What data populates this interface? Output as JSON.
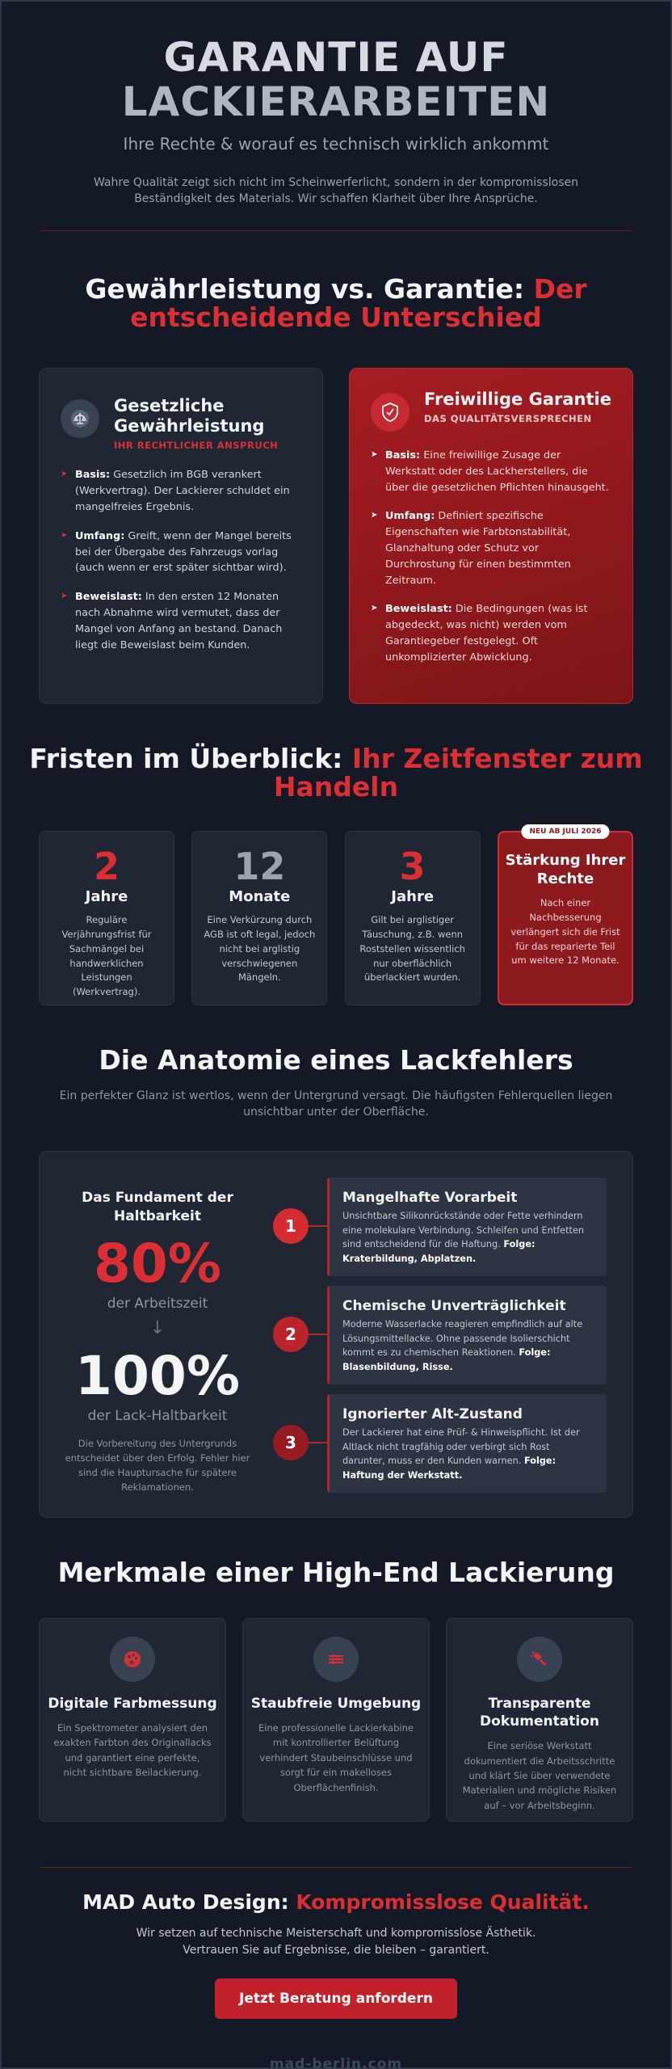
{
  "hero": {
    "title_line1": "GARANTIE AUF",
    "title_line2": "LACKIERARBEITEN",
    "subtitle": "Ihre Rechte & worauf es technisch wirklich ankommt",
    "intro": "Wahre Qualität zeigt sich nicht im Scheinwerferlicht, sondern in der kompromisslosen Beständigkeit des Materials. Wir schaffen Klarheit über Ihre Ansprüche."
  },
  "comparison": {
    "title_white": "Gewährleistung vs. Garantie: ",
    "title_red": "Der entscheidende Unterschied",
    "left": {
      "icon": "scale-icon",
      "title": "Gesetzliche Gewährleistung",
      "tag": "IHR RECHTLICHER ANSPRUCH",
      "items": [
        {
          "label": "Basis:",
          "text": " Gesetzlich im BGB verankert (Werkvertrag). Der Lackierer schuldet ein mangelfreies Ergebnis."
        },
        {
          "label": "Umfang:",
          "text": " Greift, wenn der Mangel bereits bei der Übergabe des Fahrzeugs vorlag (auch wenn er erst später sichtbar wird)."
        },
        {
          "label": "Beweislast:",
          "text": " In den ersten 12 Monaten nach Abnahme wird vermutet, dass der Mangel von Anfang an bestand. Danach liegt die Beweislast beim Kunden."
        }
      ]
    },
    "right": {
      "icon": "shield-icon",
      "title": "Freiwillige Garantie",
      "tag": "DAS QUALITÄTSVERSPRECHEN",
      "items": [
        {
          "label": "Basis:",
          "text": " Eine freiwillige Zusage der Werkstatt oder des Lackherstellers, die über die gesetzlichen Pflichten hinausgeht."
        },
        {
          "label": "Umfang:",
          "text": " Definiert spezifische Eigenschaften wie Farbtonstabilität, Glanzhaltung oder Schutz vor Durchrostung für einen bestimmten Zeitraum."
        },
        {
          "label": "Beweislast:",
          "text": " Die Bedingungen (was ist abgedeckt, was nicht) werden vom Garantiegeber festgelegt. Oft unkomplizierter Abwicklung."
        }
      ]
    }
  },
  "deadlines": {
    "title_white": "Fristen im Überblick: ",
    "title_red": "Ihr Zeitfenster zum Handeln",
    "items": [
      {
        "num": "2",
        "unit": "Jahre",
        "desc": "Reguläre Verjährungsfrist für Sachmängel bei handwerklichen Leistungen (Werkvertrag).",
        "color": "#dc2f34"
      },
      {
        "num": "12",
        "unit": "Monate",
        "desc": "Eine Verkürzung durch AGB ist oft legal, jedoch nicht bei arglistig verschwiegenen Mängeln.",
        "color": "#9ca3af"
      },
      {
        "num": "3",
        "unit": "Jahre",
        "desc": "Gilt bei arglistiger Täuschung, z.B. wenn Roststellen wissentlich nur oberflächlich überlackiert wurden.",
        "color": "#dc2f34"
      }
    ],
    "highlight": {
      "tag": "NEU AB JULI 2026",
      "title": "Stärkung Ihrer Rechte",
      "desc": "Nach einer Nachbesserung verlängert sich die Frist für das reparierte Teil um weitere 12 Monate."
    }
  },
  "anatomy": {
    "title": "Die Anatomie eines Lackfehlers",
    "subtitle": "Ein perfekter Glanz ist wertlos, wenn der Untergrund versagt. Die häufigsten Fehlerquellen liegen unsichtbar unter der Oberfläche.",
    "foundation_title": "Das Fundament der Haltbarkeit",
    "stat1_value": "80%",
    "stat1_caption": "der Arbeitszeit",
    "stat2_value": "100%",
    "stat2_caption": "der Lack-Haltbarkeit",
    "note": "Die Vorbereitung des Untergrunds entscheidet über den Erfolg. Fehler hier sind die Hauptursache für spätere Reklamationen.",
    "steps": [
      {
        "num": "1",
        "title": "Mangelhafte Vorarbeit",
        "text": "Unsichtbare Silikonrückstände oder Fette verhindern eine molekulare Verbindung. Schleifen und Entfetten sind entscheidend für die Haftung. ",
        "bold": "Folge: Kraterbildung, Abplatzen."
      },
      {
        "num": "2",
        "title": "Chemische Unverträglichkeit",
        "text": "Moderne Wasserlacke reagieren empfindlich auf alte Lösungsmittellacke. Ohne passende Isolierschicht kommt es zu chemischen Reaktionen. ",
        "bold": "Folge: Blasenbildung, Risse."
      },
      {
        "num": "3",
        "title": "Ignorierter Alt-Zustand",
        "text": "Der Lackierer hat eine Prüf- & Hinweispflicht. Ist der Altlack nicht tragfähig oder verbirgt sich Rost darunter, muss er den Kunden warnen. ",
        "bold": "Folge: Haftung der Werkstatt."
      }
    ]
  },
  "features": {
    "title": "Merkmale einer High-End Lackierung",
    "items": [
      {
        "icon": "palette-icon",
        "title": "Digitale Farbmessung",
        "desc": "Ein Spektrometer analysiert den exakten Farbton des Originallacks und garantiert eine perfekte, nicht sichtbare Beilackierung."
      },
      {
        "icon": "fan-icon",
        "title": "Staubfreie Umgebung",
        "desc": "Eine professionelle Lackierkabine mit kontrollierter Belüftung verhindert Staubeinschlüsse und sorgt für ein makelloses Oberflächenfinish."
      },
      {
        "icon": "spray-gun-icon",
        "title": "Transparente Dokumentation",
        "desc": "Eine seriöse Werkstatt dokumentiert die Arbeitsschritte und klärt Sie über verwendete Materialien und mögliche Risiken auf – vor Arbeitsbeginn."
      }
    ]
  },
  "footer": {
    "brand": "MAD Auto Design: ",
    "brand_red": "Kompromisslose Qualität.",
    "line1": "Wir setzen auf technische Meisterschaft und kompromisslose Ästhetik.",
    "line2": "Vertrauen Sie auf Ergebnisse, die bleiben – garantiert.",
    "cta": "Jetzt Beratung anfordern",
    "url": "mad-berlin.com"
  },
  "colors": {
    "accent": "#dc2f34",
    "background": "#131a26",
    "card": "#1f2733"
  }
}
